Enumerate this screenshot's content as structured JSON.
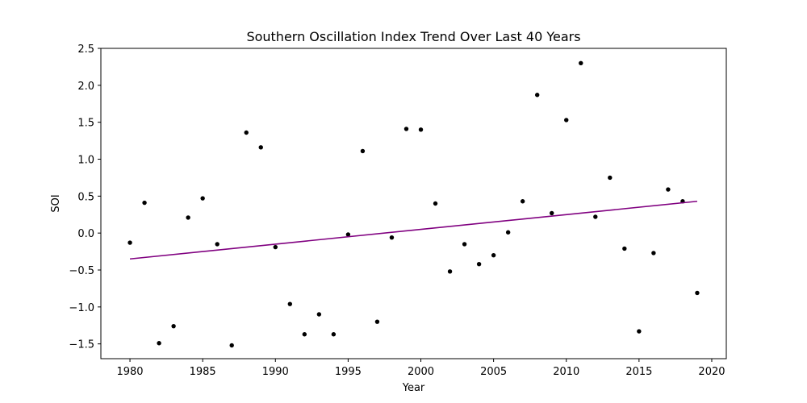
{
  "chart_data": {
    "type": "scatter",
    "title": "Southern Oscillation Index Trend Over Last 40 Years",
    "xlabel": "Year",
    "ylabel": "SOI",
    "xlim": [
      1978,
      2021
    ],
    "ylim": [
      -1.7,
      2.5
    ],
    "xticks": [
      1980,
      1985,
      1990,
      1995,
      2000,
      2005,
      2010,
      2015,
      2020
    ],
    "yticks": [
      -1.5,
      -1.0,
      -0.5,
      0.0,
      0.5,
      1.0,
      1.5,
      2.0,
      2.5
    ],
    "ytick_labels": [
      "−1.5",
      "−1.0",
      "−0.5",
      "0.0",
      "0.5",
      "1.0",
      "1.5",
      "2.0",
      "2.5"
    ],
    "grid": false,
    "series": [
      {
        "type": "scatter",
        "color": "#000000",
        "x": [
          1980,
          1981,
          1982,
          1983,
          1984,
          1985,
          1986,
          1987,
          1988,
          1989,
          1990,
          1991,
          1992,
          1993,
          1994,
          1995,
          1996,
          1997,
          1998,
          1999,
          2000,
          2001,
          2002,
          2003,
          2004,
          2005,
          2006,
          2007,
          2008,
          2009,
          2010,
          2011,
          2012,
          2013,
          2014,
          2015,
          2016,
          2017,
          2018,
          2019
        ],
        "y": [
          -0.13,
          0.41,
          -1.49,
          -1.26,
          0.21,
          0.47,
          -0.15,
          -1.52,
          1.36,
          1.16,
          -0.19,
          -0.96,
          -1.37,
          -1.1,
          -1.37,
          -0.02,
          1.11,
          -1.2,
          -0.06,
          1.41,
          1.4,
          0.4,
          -0.52,
          -0.15,
          -0.42,
          -0.3,
          0.01,
          0.43,
          1.87,
          0.27,
          1.53,
          2.3,
          0.22,
          0.75,
          -0.21,
          -1.33,
          -0.27,
          0.59,
          0.43,
          -0.81
        ]
      },
      {
        "type": "line",
        "color": "#800080",
        "x": [
          1980,
          2019
        ],
        "y": [
          -0.35,
          0.43
        ]
      }
    ]
  }
}
